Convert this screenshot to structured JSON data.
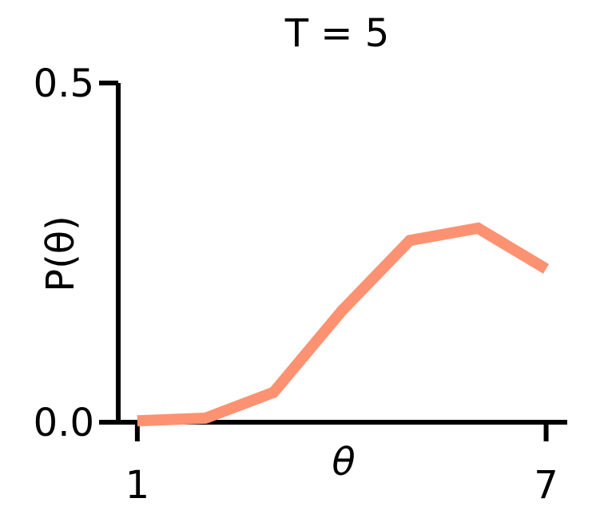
{
  "chart_data": {
    "type": "line",
    "title": "T = 5",
    "xlabel": "θ",
    "ylabel": "P(θ)",
    "x": [
      1,
      2,
      3,
      4,
      5,
      6,
      7
    ],
    "series": [
      {
        "color": "#fc9272",
        "values": [
          0.002,
          0.006,
          0.044,
          0.164,
          0.268,
          0.286,
          0.226
        ]
      }
    ],
    "xlim": [
      0.72,
      7.31
    ],
    "xticks": [
      1,
      7
    ],
    "ylim": [
      0,
      0.5
    ],
    "yticks": [
      {
        "value": 0,
        "label": "0.0"
      },
      {
        "value": 0.5,
        "label": "0.5"
      }
    ],
    "grid": false
  }
}
